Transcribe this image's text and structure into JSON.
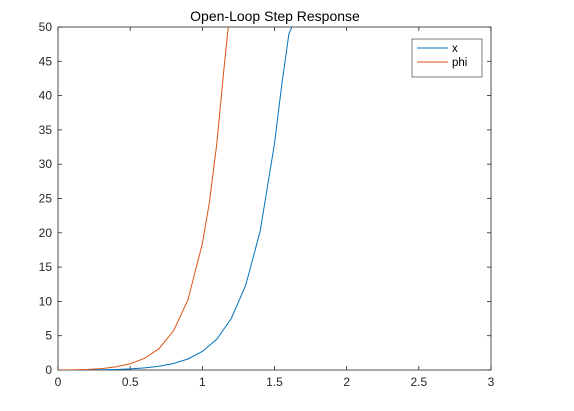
{
  "chart_data": {
    "type": "line",
    "title": "Open-Loop Step Response",
    "xlabel": "",
    "ylabel": "",
    "xlim": [
      0,
      3
    ],
    "ylim": [
      0,
      50
    ],
    "xticks": [
      0,
      0.5,
      1,
      1.5,
      2,
      2.5,
      3
    ],
    "xtick_labels": [
      "0",
      "0.5",
      "1",
      "1.5",
      "2",
      "2.5",
      "3"
    ],
    "yticks": [
      0,
      5,
      10,
      15,
      20,
      25,
      30,
      35,
      40,
      45,
      50
    ],
    "ytick_labels": [
      "0",
      "5",
      "10",
      "15",
      "20",
      "25",
      "30",
      "35",
      "40",
      "45",
      "50"
    ],
    "grid": false,
    "legend_position": "top-right",
    "series": [
      {
        "name": "x",
        "color": "#0072BD",
        "x": [
          0,
          0.1,
          0.2,
          0.3,
          0.4,
          0.5,
          0.6,
          0.7,
          0.8,
          0.9,
          1.0,
          1.1,
          1.2,
          1.3,
          1.4,
          1.5,
          1.55,
          1.6,
          1.62
        ],
        "y": [
          0,
          0.002,
          0.01,
          0.03,
          0.08,
          0.16,
          0.3,
          0.55,
          0.95,
          1.6,
          2.7,
          4.5,
          7.5,
          12.3,
          20.2,
          33.0,
          41.5,
          49.0,
          50.0
        ]
      },
      {
        "name": "phi",
        "color": "#D95319",
        "x": [
          0,
          0.1,
          0.2,
          0.3,
          0.4,
          0.5,
          0.6,
          0.7,
          0.8,
          0.9,
          1.0,
          1.05,
          1.1,
          1.15,
          1.18
        ],
        "y": [
          0,
          0.02,
          0.08,
          0.2,
          0.45,
          0.9,
          1.7,
          3.1,
          5.7,
          10.2,
          18.4,
          24.6,
          33.0,
          44.0,
          50.0
        ]
      }
    ]
  }
}
